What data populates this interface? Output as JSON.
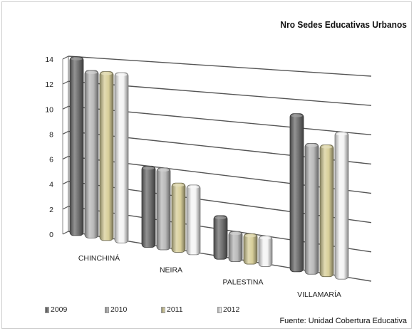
{
  "chart_data": {
    "type": "bar",
    "title": "Nro  Sedes Educativas Urbanos",
    "categories": [
      "CHINCHINÁ",
      "NEIRA",
      "PALESTINA",
      "VILLAMARÍA"
    ],
    "series": [
      {
        "name": "2009",
        "values": [
          14,
          6,
          3,
          11
        ],
        "color": "#6f6f6f"
      },
      {
        "name": "2010",
        "values": [
          13,
          6,
          2,
          9
        ],
        "color": "#b9b9b9"
      },
      {
        "name": "2011",
        "values": [
          13,
          5,
          2,
          9
        ],
        "color": "#d8cf9a"
      },
      {
        "name": "2012",
        "values": [
          13,
          5,
          2,
          10
        ],
        "color": "#f4f4f4"
      }
    ],
    "yticks": [
      0,
      2,
      4,
      6,
      8,
      10,
      12,
      14
    ],
    "ylim": [
      0,
      14
    ],
    "grid": true,
    "legend_position": "bottom-left",
    "source": "Fuente: Unidad Cobertura Educativa"
  }
}
